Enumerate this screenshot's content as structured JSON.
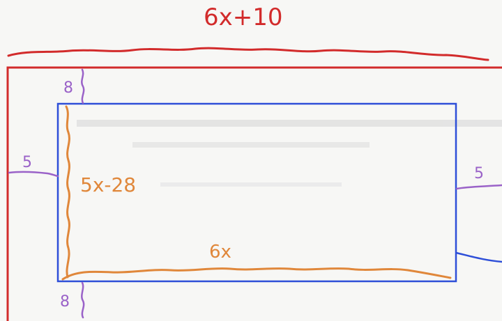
{
  "diagram": {
    "outer_width_label": "6x+10",
    "top_margin_label": "8",
    "bottom_margin_label": "8",
    "left_margin_label": "5",
    "right_margin_label": "5",
    "inner_height_label": "5x-28",
    "inner_width_label": "6x",
    "colors": {
      "outer_rect": "#d22b2b",
      "inner_rect": "#2e4fd8",
      "margin_marks": "#9a62c8",
      "inner_dims": "#e0873a",
      "background": "#f7f7f5",
      "faded_text": "#c9c9c9"
    }
  }
}
